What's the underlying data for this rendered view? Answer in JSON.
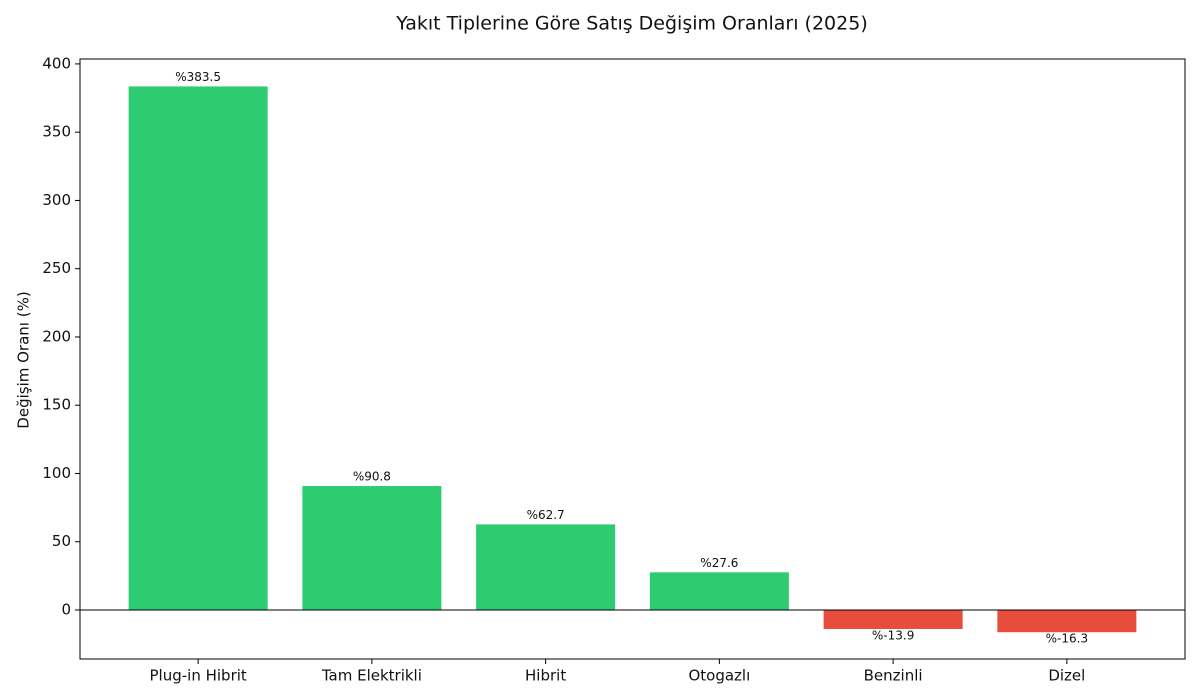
{
  "chart_data": {
    "type": "bar",
    "title": "Yakıt Tiplerine Göre Satış Değişim Oranları (2025)",
    "y_label": "Değişim Oranı (%)",
    "categories": [
      "Plug-in Hibrit",
      "Tam Elektrikli",
      "Hibrit",
      "Otogazlı",
      "Benzinli",
      "Dizel"
    ],
    "values": [
      383.5,
      90.8,
      62.7,
      27.6,
      -13.9,
      -16.3
    ],
    "value_labels": [
      "%383.5",
      "%90.8",
      "%62.7",
      "%27.6",
      "%-13.9",
      "%-16.3"
    ],
    "colors": [
      "#2ecc71",
      "#2ecc71",
      "#2ecc71",
      "#2ecc71",
      "#e74c3c",
      "#e74c3c"
    ],
    "ylim": [
      -35.9,
      403.6
    ],
    "yticks": [
      0,
      50,
      100,
      150,
      200,
      250,
      300,
      350,
      400
    ],
    "grid": false
  }
}
